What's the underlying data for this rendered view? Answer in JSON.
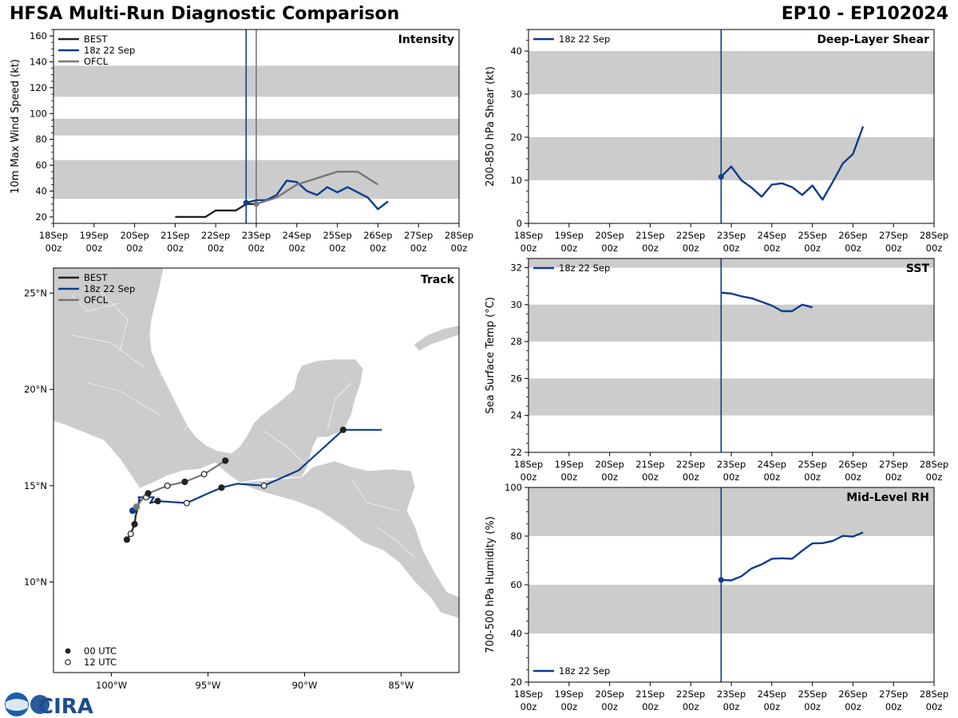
{
  "header": {
    "title": "HFSA Multi-Run Diagnostic Comparison",
    "storm_id": "EP10 - EP102024"
  },
  "logo": {
    "text": "CIRA",
    "noaa": "NOAA"
  },
  "colors": {
    "best": "#222222",
    "run": "#0a3d8c",
    "ofcl": "#777777",
    "band": "#cccccc",
    "land": "#cccccc"
  },
  "time_ticks": [
    {
      "day": "18Sep",
      "hr": "00z"
    },
    {
      "day": "19Sep",
      "hr": "00z"
    },
    {
      "day": "20Sep",
      "hr": "00z"
    },
    {
      "day": "21Sep",
      "hr": "00z"
    },
    {
      "day": "22Sep",
      "hr": "00z"
    },
    {
      "day": "23Sep",
      "hr": "00z"
    },
    {
      "day": "24Sep",
      "hr": "00z"
    },
    {
      "day": "25Sep",
      "hr": "00z"
    },
    {
      "day": "26Sep",
      "hr": "00z"
    },
    {
      "day": "27Sep",
      "hr": "00z"
    },
    {
      "day": "28Sep",
      "hr": "00z"
    }
  ],
  "chart_data": [
    {
      "id": "intensity",
      "type": "line",
      "title": "Intensity",
      "ylabel": "10m Max Wind Speed (kt)",
      "xlim_days": [
        0,
        10
      ],
      "ylim": [
        15,
        165
      ],
      "yticks": [
        20,
        40,
        60,
        80,
        100,
        120,
        140,
        160
      ],
      "bands": [
        [
          34,
          64
        ],
        [
          83,
          96
        ],
        [
          113,
          137
        ]
      ],
      "vlines": [
        {
          "x": 4.75,
          "color": "run"
        },
        {
          "x": 5.0,
          "color": "ofcl"
        }
      ],
      "legend": [
        "BEST",
        "18z 22 Sep",
        "OFCL"
      ],
      "series": [
        {
          "name": "BEST",
          "color": "best",
          "x": [
            3.0,
            3.25,
            3.5,
            3.75,
            4.0,
            4.25,
            4.5,
            4.75,
            5.0
          ],
          "y": [
            20,
            20,
            20,
            20,
            25,
            25,
            25,
            30,
            30
          ]
        },
        {
          "name": "18z 22 Sep",
          "color": "run",
          "marker_first": true,
          "x": [
            4.75,
            5.0,
            5.25,
            5.5,
            5.75,
            6.0,
            6.25,
            6.5,
            6.75,
            7.0,
            7.25,
            7.5,
            7.75,
            8.0,
            8.25
          ],
          "y": [
            31,
            33,
            33,
            37,
            48,
            47,
            40,
            37,
            43,
            39,
            43,
            39,
            35,
            26,
            32
          ]
        },
        {
          "name": "OFCL",
          "color": "ofcl",
          "marker_first": true,
          "x": [
            5.0,
            5.5,
            6.0,
            6.5,
            7.0,
            7.5,
            8.0
          ],
          "y": [
            30,
            35,
            45,
            50,
            55,
            55,
            45
          ]
        }
      ]
    },
    {
      "id": "shear",
      "type": "line",
      "title": "Deep-Layer Shear",
      "ylabel": "200-850 hPa Shear (kt)",
      "xlim_days": [
        0,
        10
      ],
      "ylim": [
        0,
        45
      ],
      "yticks": [
        0,
        10,
        20,
        30,
        40
      ],
      "bands": [
        [
          10,
          20
        ],
        [
          30,
          40
        ]
      ],
      "vlines": [
        {
          "x": 4.75,
          "color": "run"
        }
      ],
      "legend": [
        "18z 22 Sep"
      ],
      "series": [
        {
          "name": "18z 22 Sep",
          "color": "run",
          "marker_first": true,
          "x": [
            4.75,
            5.0,
            5.25,
            5.5,
            5.75,
            6.0,
            6.25,
            6.5,
            6.75,
            7.0,
            7.25,
            7.5,
            7.75,
            8.0,
            8.25
          ],
          "y": [
            10.8,
            13.2,
            10.0,
            8.3,
            6.2,
            9.0,
            9.3,
            8.4,
            6.6,
            8.8,
            5.5,
            9.6,
            13.9,
            16.1,
            22.5
          ]
        }
      ]
    },
    {
      "id": "track",
      "type": "scatter",
      "title": "Track",
      "xlim_lon": [
        -103,
        -82
      ],
      "ylim_lat": [
        5.3,
        26.3
      ],
      "xticks": [
        {
          "v": -100,
          "label": "100°W"
        },
        {
          "v": -95,
          "label": "95°W"
        },
        {
          "v": -90,
          "label": "90°W"
        },
        {
          "v": -85,
          "label": "85°W"
        }
      ],
      "yticks": [
        {
          "v": 10,
          "label": "10°N"
        },
        {
          "v": 15,
          "label": "15°N"
        },
        {
          "v": 20,
          "label": "20°N"
        },
        {
          "v": 25,
          "label": "25°N"
        }
      ],
      "legend": [
        "BEST",
        "18z 22 Sep",
        "OFCL"
      ],
      "marker_legend": [
        "00 UTC",
        "12 UTC"
      ],
      "series": [
        {
          "name": "BEST",
          "color": "best",
          "lon": [
            -99.2,
            -99.0,
            -98.8,
            -98.75,
            -98.65,
            -98.6,
            -98.55,
            -98.5
          ],
          "lat": [
            12.2,
            12.5,
            13.0,
            13.4,
            13.8,
            14.0,
            14.2,
            14.3
          ],
          "markers": [
            "00",
            "12",
            "00",
            "",
            "",
            "",
            "",
            ""
          ]
        },
        {
          "name": "18z 22 Sep",
          "color": "run",
          "lon": [
            -98.9,
            -98.7,
            -98.6,
            -98.55,
            -98.6,
            -98.2,
            -97.8,
            -98.0,
            -97.6,
            -96.1,
            -95.0,
            -94.3,
            -93.5,
            -92.1,
            -90.3,
            -88.0,
            -86.0
          ],
          "lat": [
            13.7,
            13.8,
            14.0,
            14.4,
            14.4,
            14.4,
            14.4,
            14.1,
            14.2,
            14.1,
            14.6,
            14.9,
            15.1,
            15.0,
            15.8,
            17.9,
            17.9
          ],
          "markers": [
            "first",
            "",
            "",
            "",
            "",
            "12",
            "",
            "",
            "00",
            "12",
            "",
            "00",
            "",
            "12",
            "",
            "00",
            ""
          ]
        },
        {
          "name": "OFCL",
          "color": "ofcl",
          "lon": [
            -98.7,
            -98.4,
            -98.1,
            -97.1,
            -96.2,
            -95.2,
            -94.1
          ],
          "lat": [
            13.9,
            14.3,
            14.6,
            15.0,
            15.2,
            15.6,
            16.3
          ],
          "markers": [
            "first",
            "",
            "00",
            "12",
            "00",
            "12",
            "00"
          ]
        }
      ]
    },
    {
      "id": "sst",
      "type": "line",
      "title": "SST",
      "ylabel": "Sea Surface Temp (°C)",
      "xlim_days": [
        0,
        10
      ],
      "ylim": [
        22,
        32.5
      ],
      "yticks": [
        22,
        24,
        26,
        28,
        30,
        32
      ],
      "bands": [
        [
          24,
          26
        ],
        [
          28,
          30
        ],
        [
          32,
          32.5
        ]
      ],
      "vlines": [
        {
          "x": 4.75,
          "color": "run"
        }
      ],
      "legend": [
        "18z 22 Sep"
      ],
      "series": [
        {
          "name": "18z 22 Sep",
          "color": "run",
          "marker_first": false,
          "x": [
            4.75,
            5.0,
            5.25,
            5.5,
            5.75,
            6.0,
            6.25,
            6.5,
            6.75,
            7.0
          ],
          "y": [
            30.65,
            30.6,
            30.45,
            30.35,
            30.15,
            29.95,
            29.65,
            29.65,
            30.0,
            29.85
          ]
        }
      ]
    },
    {
      "id": "rh",
      "type": "line",
      "title": "Mid-Level RH",
      "ylabel": "700-500 hPa Humidity (%)",
      "xlim_days": [
        0,
        10
      ],
      "ylim": [
        20,
        100
      ],
      "yticks": [
        20,
        40,
        60,
        80,
        100
      ],
      "bands": [
        [
          40,
          60
        ],
        [
          80,
          100
        ]
      ],
      "vlines": [
        {
          "x": 4.75,
          "color": "run"
        }
      ],
      "legend": [
        "18z 22 Sep"
      ],
      "series": [
        {
          "name": "18z 22 Sep",
          "color": "run",
          "marker_first": true,
          "x": [
            4.75,
            5.0,
            5.25,
            5.5,
            5.75,
            6.0,
            6.25,
            6.5,
            6.75,
            7.0,
            7.25,
            7.5,
            7.75,
            8.0,
            8.25
          ],
          "y": [
            62,
            61.8,
            63.5,
            66.7,
            68.4,
            70.7,
            70.9,
            70.7,
            74.0,
            77.0,
            77.1,
            78.0,
            80.1,
            79.8,
            81.5
          ]
        }
      ]
    }
  ]
}
